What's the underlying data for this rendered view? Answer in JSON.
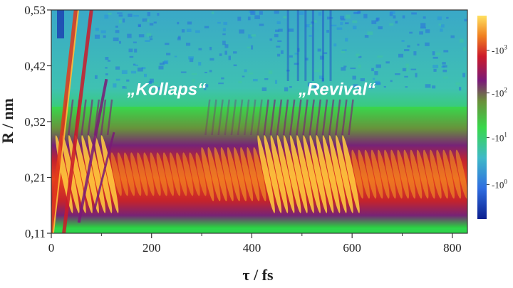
{
  "chart_data": {
    "type": "heatmap",
    "xlabel": "τ / fs",
    "ylabel": "R / nm",
    "x_ticks": [
      0,
      200,
      400,
      600,
      800
    ],
    "y_ticks": [
      "0,11",
      "0,21",
      "0,32",
      "0,42",
      "0,53"
    ],
    "xlim": [
      0,
      830
    ],
    "ylim": [
      0.11,
      0.53
    ],
    "annotations": [
      {
        "text": "„Kollaps“",
        "x": 230,
        "y": 0.37
      },
      {
        "text": "„Revival“",
        "x": 570,
        "y": 0.37
      }
    ],
    "colorbar": {
      "labels": [
        {
          "base": "-10",
          "exp": "3",
          "level": 0.83
        },
        {
          "base": "-10",
          "exp": "2",
          "level": 0.62
        },
        {
          "base": "-10",
          "exp": "1",
          "level": 0.4
        },
        {
          "base": "-10",
          "exp": "0",
          "level": 0.17
        }
      ]
    },
    "colors": [
      "#0b1f8f",
      "#2f6de0",
      "#3fb9c8",
      "#38d84a",
      "#2bd040",
      "#6a8f3a",
      "#7a1a78",
      "#cc1a2a",
      "#ee3a1a",
      "#f7a21a",
      "#ffe060"
    ]
  }
}
